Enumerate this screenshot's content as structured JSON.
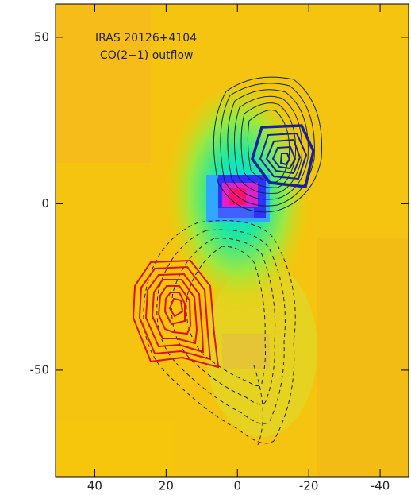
{
  "chart_data": {
    "type": "image",
    "annotations": [
      "IRAS 20126+4104",
      "CO(2−1) outflow"
    ],
    "xlim": [
      51,
      -48
    ],
    "ylim": [
      -82,
      60
    ],
    "xticks": [
      40,
      20,
      0,
      -20,
      -40
    ],
    "yticks": [
      50,
      0,
      -50
    ]
  }
}
